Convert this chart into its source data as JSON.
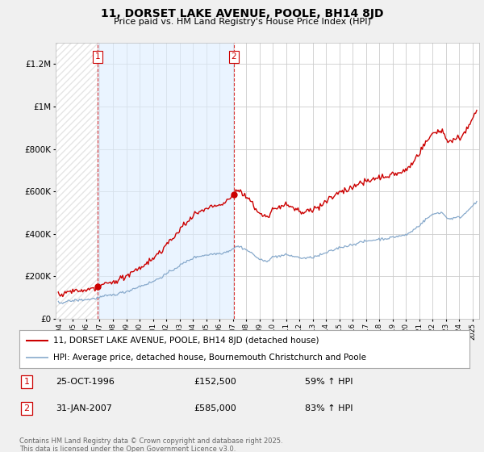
{
  "title": "11, DORSET LAKE AVENUE, POOLE, BH14 8JD",
  "subtitle": "Price paid vs. HM Land Registry's House Price Index (HPI)",
  "ylim": [
    0,
    1300000
  ],
  "yticks": [
    0,
    200000,
    400000,
    600000,
    800000,
    1000000,
    1200000
  ],
  "ytick_labels": [
    "£0",
    "£200K",
    "£400K",
    "£600K",
    "£800K",
    "£1M",
    "£1.2M"
  ],
  "xlim_start": 1993.7,
  "xlim_end": 2025.5,
  "bg_color": "#f0f0f0",
  "plot_bg_color": "#ffffff",
  "highlight_color": "#ddeeff",
  "grid_color": "#cccccc",
  "sale1_year": 1996.83,
  "sale1_price": 152500,
  "sale2_year": 2007.08,
  "sale2_price": 585000,
  "red_color": "#cc0000",
  "blue_color": "#88aacc",
  "legend_label_red": "11, DORSET LAKE AVENUE, POOLE, BH14 8JD (detached house)",
  "legend_label_blue": "HPI: Average price, detached house, Bournemouth Christchurch and Poole",
  "footnote": "Contains HM Land Registry data © Crown copyright and database right 2025.\nThis data is licensed under the Open Government Licence v3.0.",
  "table_row1_label": "1",
  "table_row1_date": "25-OCT-1996",
  "table_row1_price": "£152,500",
  "table_row1_hpi": "59% ↑ HPI",
  "table_row2_label": "2",
  "table_row2_date": "31-JAN-2007",
  "table_row2_price": "£585,000",
  "table_row2_hpi": "83% ↑ HPI"
}
